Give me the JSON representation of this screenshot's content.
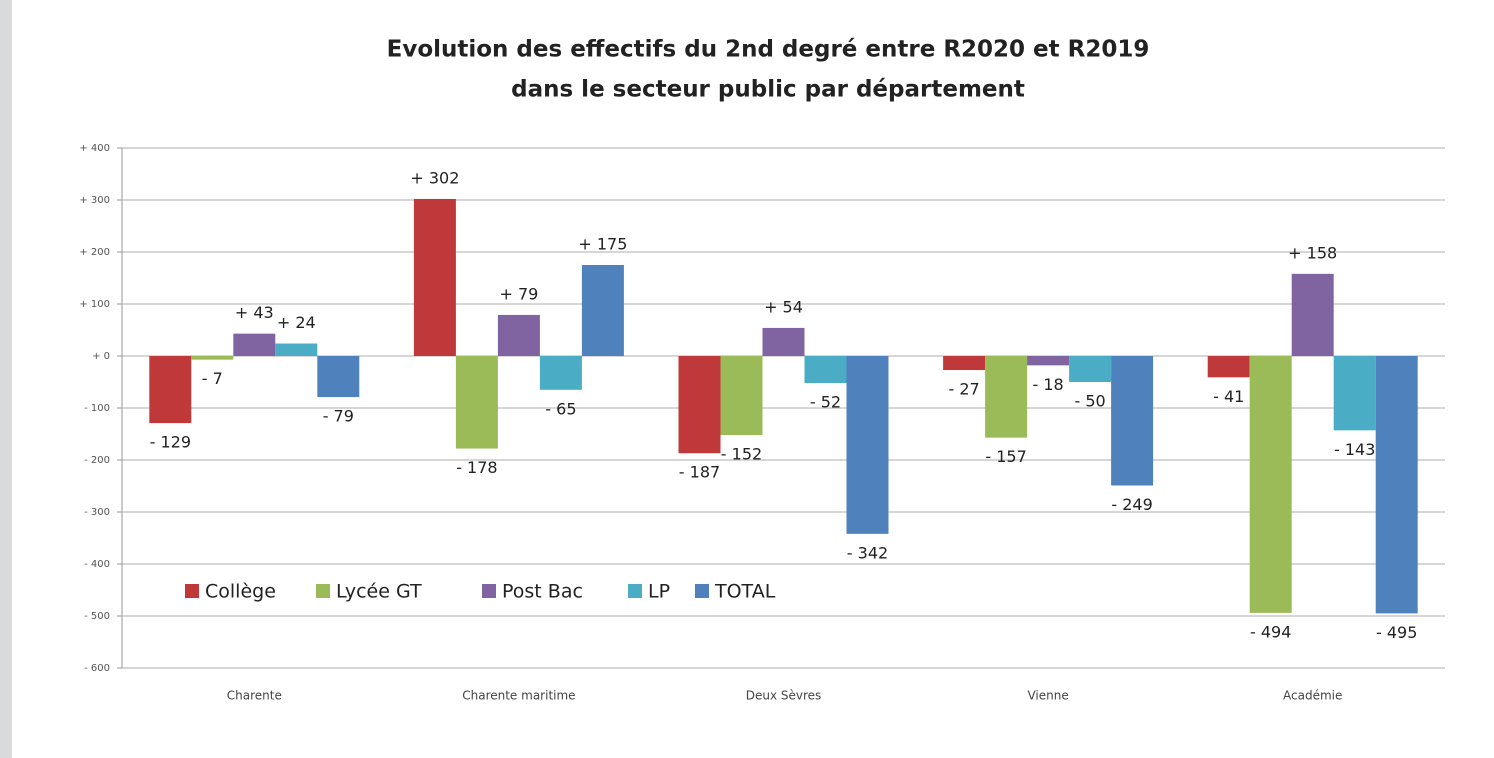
{
  "chart_data": {
    "type": "bar",
    "title": [
      "Evolution des effectifs du 2nd degré entre R2020 et R2019",
      "dans le secteur public par département"
    ],
    "categories": [
      "Charente",
      "Charente maritime",
      "Deux Sèvres",
      "Vienne",
      "Académie"
    ],
    "series": [
      {
        "name": "Collège",
        "color": "#c0393a",
        "values": [
          -129,
          302,
          -187,
          -27,
          -41
        ],
        "value_labels": [
          "- 129",
          "+ 302",
          "- 187",
          "- 27",
          "- 41"
        ]
      },
      {
        "name": "Lycée GT",
        "color": "#9bbb59",
        "values": [
          -7,
          -178,
          -152,
          -157,
          -494
        ],
        "value_labels": [
          "- 7",
          "- 178",
          "- 152",
          "- 157",
          "- 494"
        ]
      },
      {
        "name": "Post Bac",
        "color": "#8064a2",
        "values": [
          43,
          79,
          54,
          -18,
          158
        ],
        "value_labels": [
          "+ 43",
          "+ 79",
          "+ 54",
          "- 18",
          "+ 158"
        ]
      },
      {
        "name": "LP",
        "color": "#4bacc6",
        "values": [
          24,
          -65,
          -52,
          -50,
          -143
        ],
        "value_labels": [
          "+ 24",
          "- 65",
          "- 52",
          "- 50",
          "- 143"
        ]
      },
      {
        "name": "TOTAL",
        "color": "#4f81bd",
        "values": [
          -79,
          175,
          -342,
          -249,
          -495
        ],
        "value_labels": [
          "- 79",
          "+ 175",
          "- 342",
          "- 249",
          "- 495"
        ]
      }
    ],
    "ylim": [
      -600,
      400
    ],
    "yticks": [
      {
        "value": -600,
        "label": "- 600"
      },
      {
        "value": -500,
        "label": "- 500"
      },
      {
        "value": -400,
        "label": "- 400"
      },
      {
        "value": -300,
        "label": "- 300"
      },
      {
        "value": -200,
        "label": "- 200"
      },
      {
        "value": -100,
        "label": "- 100"
      },
      {
        "value": 0,
        "label": "+ 0"
      },
      {
        "value": 100,
        "label": "+ 100"
      },
      {
        "value": 200,
        "label": "+ 200"
      },
      {
        "value": 300,
        "label": "+ 300"
      },
      {
        "value": 400,
        "label": "+ 400"
      }
    ],
    "grid": true,
    "legend": "lower left"
  }
}
